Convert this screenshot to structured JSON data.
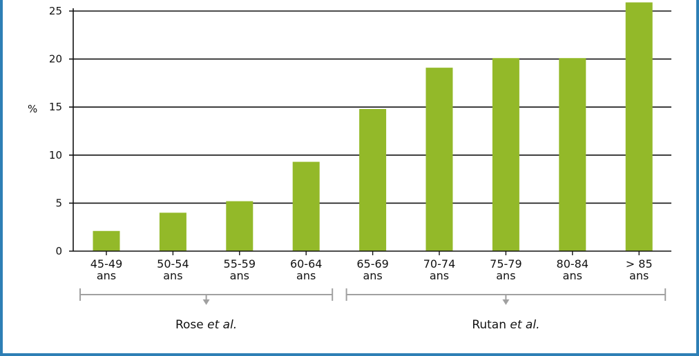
{
  "chart_data": {
    "type": "bar",
    "ylabel": "%",
    "ylim": [
      0,
      25
    ],
    "yticks": [
      0,
      5,
      10,
      15,
      20,
      25
    ],
    "grid": true,
    "categories": [
      [
        "45-49",
        "ans"
      ],
      [
        "50-54",
        "ans"
      ],
      [
        "55-59",
        "ans"
      ],
      [
        "60-64",
        "ans"
      ],
      [
        "65-69",
        "ans"
      ],
      [
        "70-74",
        "ans"
      ],
      [
        "75-79",
        "ans"
      ],
      [
        "80-84",
        "ans"
      ],
      [
        "> 85",
        "ans"
      ]
    ],
    "values": [
      2.1,
      4.0,
      5.2,
      9.3,
      14.8,
      19.1,
      20.1,
      20.1,
      25.9
    ],
    "groups": [
      {
        "label_prefix": "Rose ",
        "label_italic": "et al.",
        "start": 0,
        "end": 3
      },
      {
        "label_prefix": "Rutan ",
        "label_italic": "et al.",
        "start": 4,
        "end": 8
      }
    ],
    "colors": {
      "bar": "#93b929",
      "axis": "#111111",
      "bracket": "#a0a0a0"
    }
  }
}
